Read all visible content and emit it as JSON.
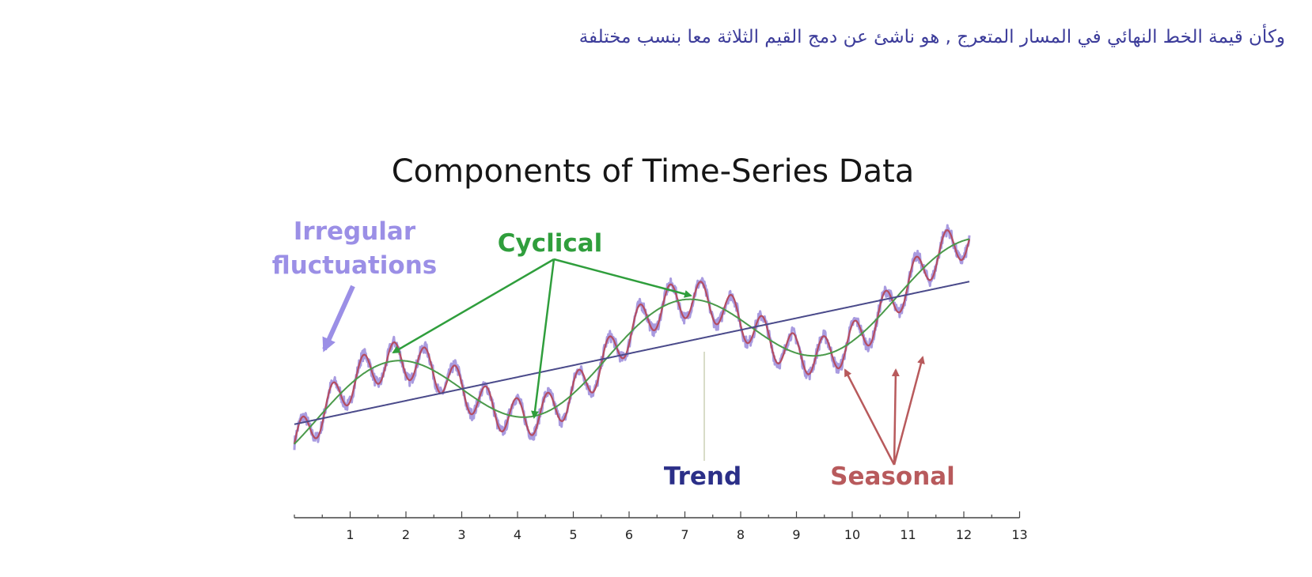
{
  "caption": "وكأن قيمة الخط النهائي في المسار المتعرج , هو ناشئ عن دمج القيم الثلاثة معا بنسب مختلفة",
  "chart_data": {
    "type": "line",
    "title": "Components of Time-Series Data",
    "xlim": [
      0,
      13
    ],
    "ylim": [
      0,
      10
    ],
    "x_ticks": [
      "1",
      "2",
      "3",
      "4",
      "5",
      "6",
      "7",
      "8",
      "9",
      "10",
      "11",
      "12",
      "13"
    ],
    "grid": false,
    "trend": {
      "start": [
        0,
        2.4
      ],
      "end": [
        12.1,
        6.6
      ]
    },
    "cycle": {
      "amplitude": 1.25,
      "period": 5.2,
      "peaks_at": [
        1.7,
        7.1
      ]
    },
    "seasonal": {
      "amplitude": 0.55,
      "period": 0.55
    },
    "annotations": [
      {
        "key": "irregular",
        "lines": [
          "Irregular",
          "fluctuations"
        ],
        "color": "#9b8fe6"
      },
      {
        "key": "cyclical",
        "lines": [
          "Cyclical"
        ],
        "color": "#2f9e3c"
      },
      {
        "key": "trend",
        "lines": [
          "Trend"
        ],
        "color": "#2b2f88"
      },
      {
        "key": "seasonal",
        "lines": [
          "Seasonal"
        ],
        "color": "#b85a5c"
      }
    ],
    "colors": {
      "trend": "#4a4a8a",
      "cycle": "#4a9a4a",
      "seasonal": "#b44d62",
      "irregular": "#a99be0",
      "axis": "#444444"
    }
  }
}
